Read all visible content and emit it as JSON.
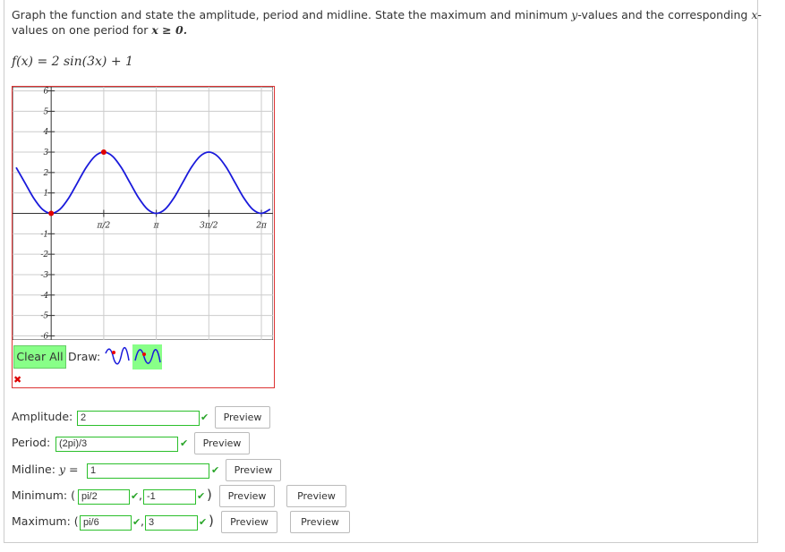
{
  "question": {
    "text1": "Graph the function and state the amplitude, period and midline. State the maximum and minimum",
    "var_y": "y",
    "text2": "-values and the corresponding",
    "var_x": "x",
    "text3": "-",
    "text4": "values on one period for",
    "condition": "x ≥ 0."
  },
  "function": "f(x) = 2 sin(3x) + 1",
  "chart_data": {
    "type": "line",
    "xlim": [
      -1.155,
      6.63
    ],
    "ylim": [
      -6.2,
      6.2
    ],
    "xticks": [
      {
        "value": 1.571,
        "label": "π/2"
      },
      {
        "value": 3.142,
        "label": "π"
      },
      {
        "value": 4.712,
        "label": "3π/2"
      },
      {
        "value": 6.283,
        "label": "2π"
      }
    ],
    "yticks": [
      -6,
      -5,
      -4,
      -3,
      -2,
      -1,
      1,
      2,
      3,
      4,
      5,
      6
    ],
    "grid": true,
    "series": [
      {
        "color": "#1a1adb",
        "x": [
          -1.047,
          -0.785,
          -0.524,
          -0.262,
          0,
          0.262,
          0.524,
          0.785,
          1.047,
          1.309,
          1.571,
          1.833,
          2.094,
          2.356,
          2.618,
          2.88,
          3.142,
          3.403,
          3.665,
          3.927,
          4.189,
          4.451,
          4.712,
          4.974,
          5.236,
          5.498,
          5.76,
          6.021,
          6.283,
          6.545
        ],
        "values": [
          2.25,
          1.5,
          0.75,
          0.201,
          0,
          0.201,
          0.75,
          1.5,
          2.25,
          2.799,
          3,
          2.799,
          2.25,
          1.5,
          0.75,
          0.201,
          0,
          0.201,
          0.75,
          1.5,
          2.25,
          2.799,
          3,
          2.799,
          2.25,
          1.5,
          0.75,
          0.201,
          0,
          0.201
        ]
      }
    ],
    "points": {
      "color": "#e00000",
      "x": [
        0,
        1.571
      ],
      "values": [
        0,
        3
      ]
    }
  },
  "tools": {
    "clear": "Clear All",
    "draw": "Draw:"
  },
  "form": {
    "amplitude": {
      "label": "Amplitude:",
      "answer": "2",
      "preview": "Preview"
    },
    "period": {
      "label": "Period:",
      "answer": "(2pi)/3",
      "preview": "Preview"
    },
    "midline": {
      "label": "Midline:",
      "var": "y",
      "eq": "=",
      "answer": "1",
      "preview": "Preview"
    },
    "minimum": {
      "label": "Minimum: (",
      "x": "pi/2",
      "sep": ",",
      "y": "-1",
      "close": ")",
      "preview1": "Preview",
      "preview2": "Preview"
    },
    "maximum": {
      "label": "Maximum: (",
      "x": "pi/6",
      "sep": ",",
      "y": "3",
      "close": ")",
      "preview1": "Preview",
      "preview2": "Preview"
    }
  }
}
